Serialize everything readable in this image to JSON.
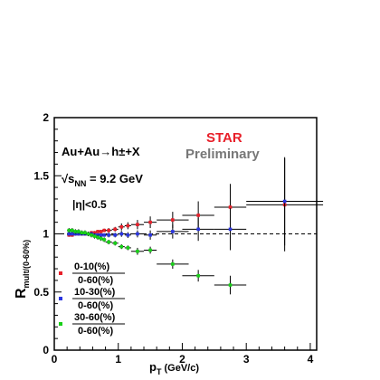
{
  "chart_data": {
    "type": "scatter",
    "title": "",
    "xlabel": "p",
    "xlabel_sub": "T",
    "xlabel_unit": " (GeV/c)",
    "ylabel": "R",
    "ylabel_sub": "mult/(0-60%)",
    "xlim": [
      0,
      4.1
    ],
    "ylim": [
      0,
      2
    ],
    "xticks": [
      "0",
      "1",
      "2",
      "3",
      "4"
    ],
    "yticks": [
      "0",
      "0.5",
      "1",
      "1.5",
      "2"
    ],
    "reference_line": {
      "y": 1,
      "style": "dashed"
    },
    "grid": false,
    "legend_position": "bottom-left",
    "annotations": {
      "reaction": "Au+Au→h±+X",
      "energy_prefix": "√",
      "energy_var": "s",
      "energy_sub": "NN",
      "energy_value": " = 9.2 GeV",
      "eta_cut": "|η|<0.5",
      "experiment": "STAR",
      "status": "Preliminary"
    },
    "series": [
      {
        "name_num": "0-10(%)",
        "name_den": "0-60(%)",
        "color": "#e8202a",
        "points": [
          {
            "x": 0.23,
            "y": 0.99,
            "xerr": 0.03,
            "yerr": 0.015
          },
          {
            "x": 0.28,
            "y": 0.99,
            "xerr": 0.03,
            "yerr": 0.015
          },
          {
            "x": 0.33,
            "y": 1.0,
            "xerr": 0.03,
            "yerr": 0.015
          },
          {
            "x": 0.38,
            "y": 1.0,
            "xerr": 0.03,
            "yerr": 0.015
          },
          {
            "x": 0.43,
            "y": 1.0,
            "xerr": 0.03,
            "yerr": 0.015
          },
          {
            "x": 0.48,
            "y": 1.0,
            "xerr": 0.03,
            "yerr": 0.015
          },
          {
            "x": 0.53,
            "y": 1.0,
            "xerr": 0.03,
            "yerr": 0.015
          },
          {
            "x": 0.58,
            "y": 1.01,
            "xerr": 0.03,
            "yerr": 0.015
          },
          {
            "x": 0.63,
            "y": 1.01,
            "xerr": 0.03,
            "yerr": 0.015
          },
          {
            "x": 0.68,
            "y": 1.02,
            "xerr": 0.03,
            "yerr": 0.015
          },
          {
            "x": 0.73,
            "y": 1.02,
            "xerr": 0.03,
            "yerr": 0.015
          },
          {
            "x": 0.78,
            "y": 1.03,
            "xerr": 0.03,
            "yerr": 0.015
          },
          {
            "x": 0.85,
            "y": 1.03,
            "xerr": 0.05,
            "yerr": 0.02
          },
          {
            "x": 0.95,
            "y": 1.04,
            "xerr": 0.05,
            "yerr": 0.02
          },
          {
            "x": 1.05,
            "y": 1.06,
            "xerr": 0.05,
            "yerr": 0.03
          },
          {
            "x": 1.15,
            "y": 1.07,
            "xerr": 0.05,
            "yerr": 0.03
          },
          {
            "x": 1.3,
            "y": 1.08,
            "xerr": 0.1,
            "yerr": 0.04
          },
          {
            "x": 1.5,
            "y": 1.1,
            "xerr": 0.1,
            "yerr": 0.05
          },
          {
            "x": 1.85,
            "y": 1.12,
            "xerr": 0.25,
            "yerr": 0.07
          },
          {
            "x": 2.25,
            "y": 1.16,
            "xerr": 0.25,
            "yerr": 0.12
          },
          {
            "x": 2.75,
            "y": 1.23,
            "xerr": 0.25,
            "yerr": 0.2
          },
          {
            "x": 3.6,
            "y": 1.25,
            "xerr": 0.6,
            "yerr": 0.4
          }
        ]
      },
      {
        "name_num": "10-30(%)",
        "name_den": "0-60(%)",
        "color": "#2a35e0",
        "points": [
          {
            "x": 0.23,
            "y": 1.0,
            "xerr": 0.03,
            "yerr": 0.015
          },
          {
            "x": 0.28,
            "y": 1.0,
            "xerr": 0.03,
            "yerr": 0.015
          },
          {
            "x": 0.33,
            "y": 1.0,
            "xerr": 0.03,
            "yerr": 0.015
          },
          {
            "x": 0.38,
            "y": 1.0,
            "xerr": 0.03,
            "yerr": 0.015
          },
          {
            "x": 0.43,
            "y": 1.0,
            "xerr": 0.03,
            "yerr": 0.015
          },
          {
            "x": 0.48,
            "y": 1.0,
            "xerr": 0.03,
            "yerr": 0.015
          },
          {
            "x": 0.53,
            "y": 1.0,
            "xerr": 0.03,
            "yerr": 0.015
          },
          {
            "x": 0.58,
            "y": 1.0,
            "xerr": 0.03,
            "yerr": 0.015
          },
          {
            "x": 0.63,
            "y": 0.99,
            "xerr": 0.03,
            "yerr": 0.015
          },
          {
            "x": 0.68,
            "y": 0.99,
            "xerr": 0.03,
            "yerr": 0.015
          },
          {
            "x": 0.73,
            "y": 0.99,
            "xerr": 0.03,
            "yerr": 0.015
          },
          {
            "x": 0.78,
            "y": 0.99,
            "xerr": 0.03,
            "yerr": 0.015
          },
          {
            "x": 0.85,
            "y": 0.99,
            "xerr": 0.05,
            "yerr": 0.02
          },
          {
            "x": 0.95,
            "y": 0.99,
            "xerr": 0.05,
            "yerr": 0.02
          },
          {
            "x": 1.05,
            "y": 1.0,
            "xerr": 0.05,
            "yerr": 0.025
          },
          {
            "x": 1.15,
            "y": 0.99,
            "xerr": 0.05,
            "yerr": 0.025
          },
          {
            "x": 1.3,
            "y": 1.0,
            "xerr": 0.1,
            "yerr": 0.03
          },
          {
            "x": 1.5,
            "y": 0.99,
            "xerr": 0.1,
            "yerr": 0.04
          },
          {
            "x": 1.85,
            "y": 1.02,
            "xerr": 0.25,
            "yerr": 0.06
          },
          {
            "x": 2.25,
            "y": 1.04,
            "xerr": 0.25,
            "yerr": 0.1
          },
          {
            "x": 2.75,
            "y": 1.04,
            "xerr": 0.25,
            "yerr": 0.18
          },
          {
            "x": 3.6,
            "y": 1.28,
            "xerr": 0.6,
            "yerr": 0.38
          }
        ]
      },
      {
        "name_num": "30-60(%)",
        "name_den": "0-60(%)",
        "color": "#18d018",
        "points": [
          {
            "x": 0.23,
            "y": 1.03,
            "xerr": 0.03,
            "yerr": 0.02
          },
          {
            "x": 0.28,
            "y": 1.03,
            "xerr": 0.03,
            "yerr": 0.02
          },
          {
            "x": 0.33,
            "y": 1.02,
            "xerr": 0.03,
            "yerr": 0.02
          },
          {
            "x": 0.38,
            "y": 1.02,
            "xerr": 0.03,
            "yerr": 0.02
          },
          {
            "x": 0.43,
            "y": 1.01,
            "xerr": 0.03,
            "yerr": 0.02
          },
          {
            "x": 0.48,
            "y": 1.01,
            "xerr": 0.03,
            "yerr": 0.02
          },
          {
            "x": 0.53,
            "y": 1.0,
            "xerr": 0.03,
            "yerr": 0.02
          },
          {
            "x": 0.58,
            "y": 0.99,
            "xerr": 0.03,
            "yerr": 0.02
          },
          {
            "x": 0.63,
            "y": 0.98,
            "xerr": 0.03,
            "yerr": 0.02
          },
          {
            "x": 0.68,
            "y": 0.97,
            "xerr": 0.03,
            "yerr": 0.02
          },
          {
            "x": 0.73,
            "y": 0.96,
            "xerr": 0.03,
            "yerr": 0.02
          },
          {
            "x": 0.78,
            "y": 0.95,
            "xerr": 0.03,
            "yerr": 0.02
          },
          {
            "x": 0.85,
            "y": 0.93,
            "xerr": 0.05,
            "yerr": 0.02
          },
          {
            "x": 0.95,
            "y": 0.92,
            "xerr": 0.05,
            "yerr": 0.02
          },
          {
            "x": 1.05,
            "y": 0.89,
            "xerr": 0.05,
            "yerr": 0.02
          },
          {
            "x": 1.15,
            "y": 0.88,
            "xerr": 0.05,
            "yerr": 0.02
          },
          {
            "x": 1.3,
            "y": 0.85,
            "xerr": 0.1,
            "yerr": 0.03
          },
          {
            "x": 1.5,
            "y": 0.86,
            "xerr": 0.1,
            "yerr": 0.03
          },
          {
            "x": 1.85,
            "y": 0.74,
            "xerr": 0.25,
            "yerr": 0.04
          },
          {
            "x": 2.25,
            "y": 0.64,
            "xerr": 0.25,
            "yerr": 0.05
          },
          {
            "x": 2.75,
            "y": 0.56,
            "xerr": 0.25,
            "yerr": 0.08
          }
        ]
      }
    ]
  }
}
